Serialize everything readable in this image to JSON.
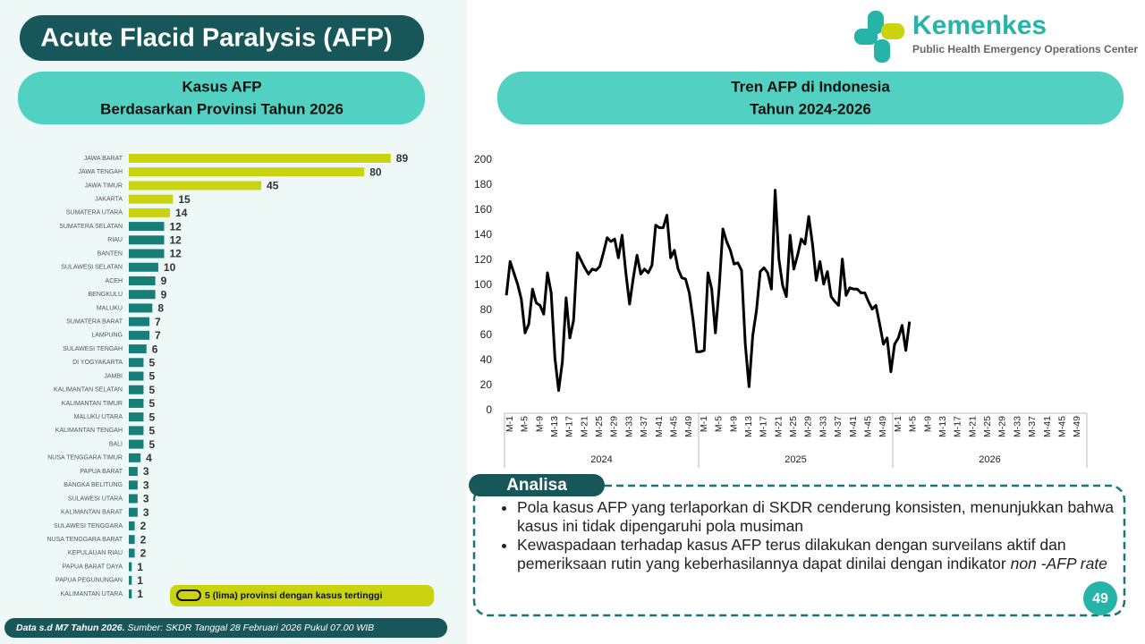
{
  "header": {
    "title": "Acute Flacid Paralysis (AFP)"
  },
  "logo": {
    "name": "Kemenkes",
    "subtitle": "Public Health Emergency Operations Center"
  },
  "chart_data": [
    {
      "type": "bar",
      "title": "Kasus AFP",
      "subtitle": "Berdasarkan Provinsi Tahun 2026",
      "categories": [
        "JAWA BARAT",
        "JAWA TENGAH",
        "JAWA TIMUR",
        "JAKARTA",
        "SUMATERA UTARA",
        "SUMATERA SELATAN",
        "RIAU",
        "BANTEN",
        "SULAWESI SELATAN",
        "ACEH",
        "BENGKULU",
        "MALUKU",
        "SUMATERA BARAT",
        "LAMPUNG",
        "SULAWESI TENGAH",
        "DI YOGYAKARTA",
        "JAMBI",
        "KALIMANTAN SELATAN",
        "KALIMANTAN TIMUR",
        "MALUKU UTARA",
        "KALIMANTAN TENGAH",
        "BALI",
        "NUSA TENGGARA TIMUR",
        "PAPUA BARAT",
        "BANGKA BELITUNG",
        "SULAWESI UTARA",
        "KALIMANTAN BARAT",
        "SULAWESI TENGGARA",
        "NUSA TENGGARA BARAT",
        "KEPULAUAN RIAU",
        "PAPUA BARAT DAYA",
        "PAPUA PEGUNUNGAN",
        "KALIMANTAN UTARA"
      ],
      "values": [
        89,
        80,
        45,
        15,
        14,
        12,
        12,
        12,
        10,
        9,
        9,
        8,
        7,
        7,
        6,
        5,
        5,
        5,
        5,
        5,
        5,
        5,
        4,
        3,
        3,
        3,
        3,
        2,
        2,
        2,
        1,
        1,
        1
      ],
      "colors": [
        "#c9d30f",
        "#c9d30f",
        "#c9d30f",
        "#c9d30f",
        "#c9d30f",
        "#177e78",
        "#177e78",
        "#177e78",
        "#177e78",
        "#177e78",
        "#177e78",
        "#177e78",
        "#177e78",
        "#177e78",
        "#177e78",
        "#177e78",
        "#177e78",
        "#177e78",
        "#177e78",
        "#177e78",
        "#177e78",
        "#177e78",
        "#177e78",
        "#177e78",
        "#177e78",
        "#177e78",
        "#177e78",
        "#177e78",
        "#177e78",
        "#177e78",
        "#177e78",
        "#177e78",
        "#177e78"
      ],
      "legend_note": "5 (lima) provinsi dengan kasus tertinggi"
    },
    {
      "type": "line",
      "title": "Tren AFP di Indonesia",
      "subtitle": "Tahun 2024-2026",
      "groups": [
        "2024",
        "2025",
        "2026"
      ],
      "categories": [
        "M-1",
        null,
        null,
        null,
        "M-5",
        null,
        null,
        null,
        "M-9",
        null,
        null,
        null,
        "M-13",
        null,
        null,
        null,
        "M-17",
        null,
        null,
        null,
        "M-21",
        null,
        null,
        null,
        "M-25",
        null,
        null,
        null,
        "M-29",
        null,
        null,
        null,
        "M-33",
        null,
        null,
        null,
        "M-37",
        null,
        null,
        null,
        "M-41",
        null,
        null,
        null,
        "M-45",
        null,
        null,
        null,
        "M-49",
        null,
        null,
        null,
        "M-1",
        null,
        null,
        null,
        "M-5",
        null,
        null,
        null,
        "M-9",
        null,
        null,
        null,
        "M-13",
        null,
        null,
        null,
        "M-17",
        null,
        null,
        null,
        "M-21",
        null,
        null,
        null,
        "M-25",
        null,
        null,
        null,
        "M-29",
        null,
        null,
        null,
        "M-33",
        null,
        null,
        null,
        "M-37",
        null,
        null,
        null,
        "M-41",
        null,
        null,
        null,
        "M-45",
        null,
        null,
        null,
        "M-49",
        null,
        null,
        null,
        "M-1",
        null,
        null,
        null,
        "M-5",
        null,
        null,
        null,
        "M-9",
        null,
        null,
        null,
        "M-13",
        null,
        null,
        null,
        "M-17",
        null,
        null,
        null,
        "M-21",
        null,
        null,
        null,
        "M-25",
        null,
        null,
        null,
        "M-29",
        null,
        null,
        null,
        "M-33",
        null,
        null,
        null,
        "M-37",
        null,
        null,
        null,
        "M-41",
        null,
        null,
        null,
        "M-45",
        null,
        null,
        null,
        "M-49",
        null,
        null,
        null
      ],
      "values": [
        92,
        119,
        110,
        101,
        89,
        62,
        69,
        97,
        86,
        84,
        77,
        110,
        94,
        42,
        16,
        39,
        90,
        58,
        72,
        126,
        120,
        114,
        109,
        113,
        112,
        115,
        126,
        138,
        135,
        137,
        122,
        140,
        110,
        85,
        106,
        124,
        109,
        113,
        110,
        116,
        148,
        146,
        146,
        156,
        122,
        128,
        113,
        106,
        105,
        94,
        73,
        47,
        47,
        48,
        110,
        97,
        62,
        98,
        145,
        135,
        128,
        117,
        118,
        112,
        53,
        19,
        60,
        80,
        111,
        114,
        110,
        97,
        176,
        121,
        100,
        91,
        140,
        113,
        124,
        137,
        133,
        155,
        133,
        104,
        119,
        101,
        111,
        91,
        87,
        84,
        121,
        92,
        98,
        97,
        97,
        94,
        94,
        87,
        81,
        84,
        69,
        53,
        58,
        31,
        53,
        58,
        68,
        48,
        71,
        null,
        null,
        null,
        null,
        null,
        null,
        null,
        null,
        null,
        null,
        null,
        null,
        null,
        null,
        null,
        null,
        null,
        null,
        null,
        null,
        null,
        null,
        null,
        null,
        null,
        null,
        null,
        null,
        null,
        null,
        null,
        null,
        null,
        null,
        null,
        null,
        null,
        null,
        null,
        null,
        null,
        null,
        null,
        null,
        null,
        null,
        null
      ],
      "color": "#000000",
      "ylim": [
        0,
        200
      ],
      "yticks": [
        0,
        20,
        40,
        60,
        80,
        100,
        120,
        140,
        160,
        180,
        200
      ]
    }
  ],
  "analysis": {
    "title": "Analisa",
    "bullets": [
      {
        "text": "Pola kasus AFP yang terlaporkan di SKDR cenderung konsisten, menunjukkan bahwa kasus ini tidak dipengaruhi pola musiman"
      },
      {
        "text": "Kewaspadaan terhadap kasus AFP terus dilakukan dengan surveilans aktif dan pemeriksaan rutin yang keberhasilannya dapat dinilai dengan indikator",
        "italic": "non -AFP rate"
      }
    ]
  },
  "footer": {
    "bold": "Data s.d M7 Tahun 2026.",
    "text": "Sumber: SKDR Tanggal 28 Februari 2026 Pukul 07.00 WIB"
  },
  "page_number": "49"
}
